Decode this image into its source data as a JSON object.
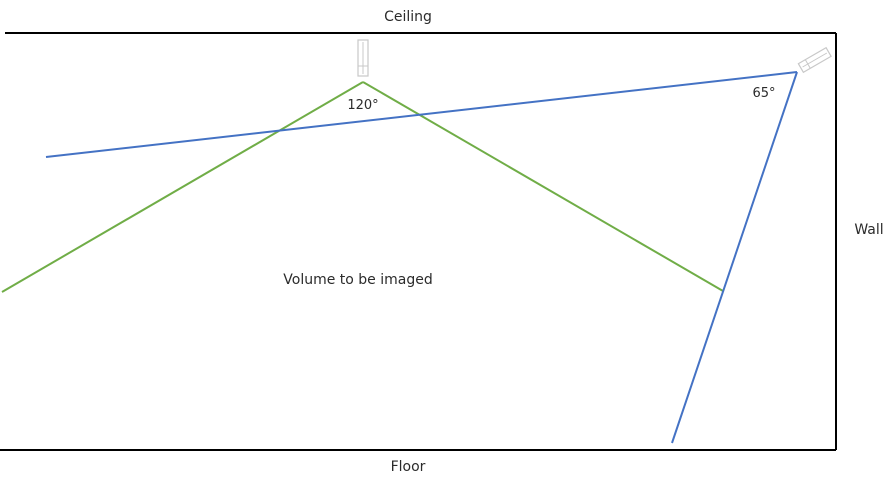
{
  "labels": {
    "ceiling": "Ceiling",
    "floor": "Floor",
    "wall": "Wall",
    "volume": "Volume to be imaged"
  },
  "angles": {
    "ceiling_camera": "120°",
    "wall_camera": "65°"
  },
  "colors": {
    "room_outline": "#000000",
    "ceiling_camera_fov": "#70ad47",
    "wall_camera_fov": "#4472c4",
    "camera_body": "#c8c8c8",
    "text": "#2b2b2b"
  }
}
